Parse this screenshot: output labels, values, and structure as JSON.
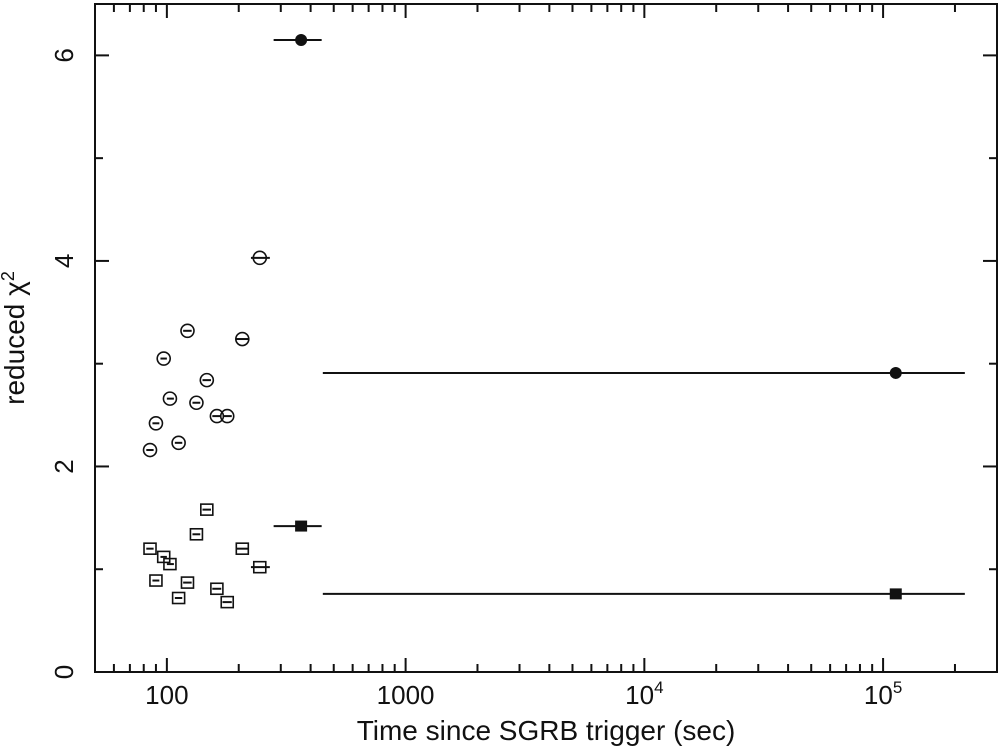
{
  "chart_data": {
    "type": "scatter",
    "title": "",
    "xlabel": "Time since SGRB trigger (sec)",
    "ylabel_base": "reduced χ",
    "ylabel_sup": "2",
    "x_scale": "log",
    "xlim": [
      50,
      300000
    ],
    "ylim": [
      0,
      6.5
    ],
    "x_ticks": [
      {
        "value": 100,
        "base": "100",
        "exp": ""
      },
      {
        "value": 1000,
        "base": "1000",
        "exp": ""
      },
      {
        "value": 10000,
        "base": "10",
        "exp": "4"
      },
      {
        "value": 100000,
        "base": "10",
        "exp": "5"
      }
    ],
    "y_ticks": [
      {
        "value": 0,
        "label": "0"
      },
      {
        "value": 2,
        "label": "2"
      },
      {
        "value": 4,
        "label": "4"
      },
      {
        "value": 6,
        "label": "6"
      }
    ],
    "grid": false,
    "legend": "none",
    "series": [
      {
        "marker": "open-circle",
        "points": [
          {
            "x": 85,
            "y": 2.16,
            "xlo": 82,
            "xhi": 88
          },
          {
            "x": 90,
            "y": 2.42,
            "xlo": 87,
            "xhi": 93
          },
          {
            "x": 97,
            "y": 3.05,
            "xlo": 94,
            "xhi": 100
          },
          {
            "x": 103,
            "y": 2.66,
            "xlo": 100,
            "xhi": 107
          },
          {
            "x": 112,
            "y": 2.23,
            "xlo": 108,
            "xhi": 116
          },
          {
            "x": 122,
            "y": 3.32,
            "xlo": 117,
            "xhi": 127
          },
          {
            "x": 133,
            "y": 2.62,
            "xlo": 128,
            "xhi": 138
          },
          {
            "x": 147,
            "y": 2.84,
            "xlo": 141,
            "xhi": 153
          },
          {
            "x": 162,
            "y": 2.49,
            "xlo": 155,
            "xhi": 169
          },
          {
            "x": 179,
            "y": 2.49,
            "xlo": 171,
            "xhi": 187
          },
          {
            "x": 207,
            "y": 3.24,
            "xlo": 195,
            "xhi": 220
          },
          {
            "x": 245,
            "y": 4.03,
            "xlo": 225,
            "xhi": 270
          }
        ]
      },
      {
        "marker": "filled-circle",
        "points": [
          {
            "x": 365,
            "y": 6.15,
            "xlo": 280,
            "xhi": 445
          },
          {
            "x": 113000,
            "y": 2.91,
            "xlo": 450,
            "xhi": 220000
          }
        ]
      },
      {
        "marker": "open-square",
        "points": [
          {
            "x": 85,
            "y": 1.2,
            "xlo": 82,
            "xhi": 88
          },
          {
            "x": 90,
            "y": 0.89,
            "xlo": 87,
            "xhi": 93
          },
          {
            "x": 97,
            "y": 1.12,
            "xlo": 94,
            "xhi": 100
          },
          {
            "x": 103,
            "y": 1.05,
            "xlo": 100,
            "xhi": 107
          },
          {
            "x": 112,
            "y": 0.72,
            "xlo": 108,
            "xhi": 116
          },
          {
            "x": 122,
            "y": 0.87,
            "xlo": 117,
            "xhi": 127
          },
          {
            "x": 133,
            "y": 1.34,
            "xlo": 128,
            "xhi": 138
          },
          {
            "x": 147,
            "y": 1.58,
            "xlo": 141,
            "xhi": 153
          },
          {
            "x": 162,
            "y": 0.81,
            "xlo": 155,
            "xhi": 169
          },
          {
            "x": 179,
            "y": 0.68,
            "xlo": 171,
            "xhi": 187
          },
          {
            "x": 207,
            "y": 1.2,
            "xlo": 195,
            "xhi": 220
          },
          {
            "x": 245,
            "y": 1.02,
            "xlo": 225,
            "xhi": 270
          }
        ]
      },
      {
        "marker": "filled-square",
        "points": [
          {
            "x": 365,
            "y": 1.42,
            "xlo": 280,
            "xhi": 445
          },
          {
            "x": 113000,
            "y": 0.76,
            "xlo": 450,
            "xhi": 220000
          }
        ]
      }
    ]
  }
}
